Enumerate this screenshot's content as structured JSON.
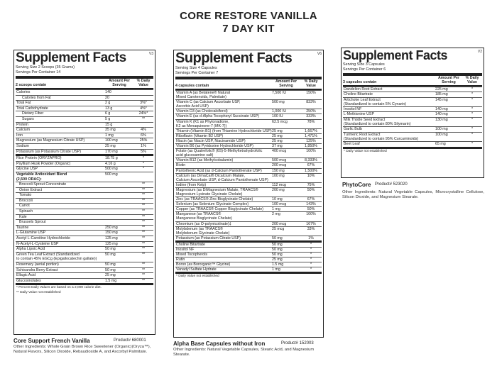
{
  "title_line1": "CORE RESTORE VANILLA",
  "title_line2": "7 DAY KIT",
  "panel1": {
    "heading": "Supplement Facts",
    "version": "V3",
    "serving_size": "Serving Size 2 Scoops (35 Grams)",
    "servings": "Servings Per Container 14",
    "col_label": "2 scoops contain",
    "col_amount": "Amount Per Serving",
    "col_dv": "% Daily Value",
    "rows": [
      {
        "n": "Calories",
        "a": "140",
        "d": "",
        "cls": ""
      },
      {
        "n": "Calories from Fat",
        "a": "20",
        "d": "",
        "cls": "ind"
      },
      {
        "n": "Total Fat",
        "a": "2 g",
        "d": "3%*",
        "cls": ""
      },
      {
        "n": "Total Carbohydrate",
        "a": "13 g",
        "d": "4%*",
        "cls": ""
      },
      {
        "n": "Dietary Fiber",
        "a": "6 g",
        "d": "24%*",
        "cls": "ind"
      },
      {
        "n": "Sugars",
        "a": "5 g",
        "d": "**",
        "cls": "ind"
      },
      {
        "n": "Protein",
        "a": "15 g",
        "d": "",
        "cls": ""
      },
      {
        "n": "Calcium",
        "a": "35 mg",
        "d": "4%",
        "cls": ""
      },
      {
        "n": "Iron",
        "a": "1 mg",
        "d": "6%",
        "cls": ""
      },
      {
        "n": "Magnesium (as Magnesium Citrate USP)",
        "a": "100 mg",
        "d": "25%",
        "cls": ""
      },
      {
        "n": "Sodium",
        "a": "25 mg",
        "d": "1%",
        "cls": ""
      },
      {
        "n": "Potassium (as Potassium Citrate USP)",
        "a": "170 mg",
        "d": "5%",
        "cls": ""
      },
      {
        "n": "Rice Protein (ORYZAPRO)",
        "a": "18.75 g",
        "d": "*",
        "cls": "thk"
      },
      {
        "n": "Psyllium Husk Powder (Organic)",
        "a": "4.16 g",
        "d": "*",
        "cls": ""
      },
      {
        "n": "Glycine USP",
        "a": "500 mg",
        "d": "*",
        "cls": ""
      },
      {
        "n": "Vegetable Antioxidant Blend\n(2,500 ORAC):",
        "a": "500 mg",
        "d": "",
        "cls": "bold"
      },
      {
        "n": "Broccoli Sprout Concentrate",
        "a": "",
        "d": "**",
        "cls": "ind2"
      },
      {
        "n": "Onion Extract",
        "a": "",
        "d": "**",
        "cls": "ind2"
      },
      {
        "n": "Tomato",
        "a": "",
        "d": "**",
        "cls": "ind2"
      },
      {
        "n": "Broccoli",
        "a": "",
        "d": "**",
        "cls": "ind2"
      },
      {
        "n": "Carrot",
        "a": "",
        "d": "**",
        "cls": "ind2"
      },
      {
        "n": "Spinach",
        "a": "",
        "d": "**",
        "cls": "ind2"
      },
      {
        "n": "Kale",
        "a": "",
        "d": "**",
        "cls": "ind2"
      },
      {
        "n": "Brussels Sprout",
        "a": "",
        "d": "**",
        "cls": "ind2"
      },
      {
        "n": "Taurine",
        "a": "250 mg",
        "d": "**",
        "cls": ""
      },
      {
        "n": "L-Glutamine USP",
        "a": "150 mg",
        "d": "**",
        "cls": ""
      },
      {
        "n": "Acetyl L-Carnitine Hydrochloride",
        "a": "125 mg",
        "d": "**",
        "cls": ""
      },
      {
        "n": "N-Acetyl-L-Cysteine USP",
        "a": "125 mg",
        "d": "**",
        "cls": ""
      },
      {
        "n": "Alpha Lipoic Acid",
        "a": "50 mg",
        "d": "**",
        "cls": ""
      },
      {
        "n": "Green Tea Leaf Extract (Standardized\nto contain 45% EGCg (Epigallocatechin gallate))",
        "a": "50 mg",
        "d": "**",
        "cls": ""
      },
      {
        "n": "Rosemary (aerial portion)",
        "a": "50 mg",
        "d": "**",
        "cls": ""
      },
      {
        "n": "Schisandra Berry Extract",
        "a": "50 mg",
        "d": "**",
        "cls": ""
      },
      {
        "n": "Ellagic Acid",
        "a": "25 mg",
        "d": "**",
        "cls": ""
      },
      {
        "n": "Glucosinolates",
        "a": "1.5 mg",
        "d": "**",
        "cls": ""
      }
    ],
    "foot1": "* Percent Daily Values are based on a 2,000 calorie diet.",
    "foot2": "** Daily Value not established",
    "product": "Core Support French Vanilla",
    "product_num": "Product# 680001",
    "other": "Other Ingredients: Whole Grain Brown Rice Sweetener (Organic)(Oryza™), Natural Flavors, Silicon Dioxide, Rebaudioside A, and Ascorbyl Palmitate."
  },
  "panel2": {
    "heading": "Supplement Facts",
    "version": "V6",
    "serving_size": "Serving Size 4 Capsules",
    "servings": "Servings Per Container 7",
    "col_label": "4 capsules contain",
    "col_amount": "Amount Per Serving",
    "col_dv": "% Daily Value",
    "rows": [
      {
        "n": "Vitamin A (as Betatene® Natural\nMixed Carotenoids, Palmitate)",
        "a": "7,500 IU",
        "d": "150%",
        "cls": ""
      },
      {
        "n": "Vitamin C (as Calcium Ascorbate USP,\nAscorbic Acid USP)",
        "a": "500 mg",
        "d": "833%",
        "cls": ""
      },
      {
        "n": "Vitamin D3 (as Cholecalciferol)",
        "a": "1,000 IU",
        "d": "250%",
        "cls": ""
      },
      {
        "n": "Vitamin E (as d-Alpha Tocopheryl Succinate USP)",
        "a": "100 IU",
        "d": "333%",
        "cls": ""
      },
      {
        "n": "Vitamin K (K1 as Phytonadione,\nK2 as Menaquinone-7 (MK-7))",
        "a": "62.5 mcg",
        "d": "78%",
        "cls": ""
      },
      {
        "n": "Thiamin (Vitamin B1) (from Thiamine Hydrochloride USP)",
        "a": "25 mg",
        "d": "1,667%",
        "cls": ""
      },
      {
        "n": "Riboflavin (Vitamin B2 USP)",
        "a": "25 mg",
        "d": "1,471%",
        "cls": ""
      },
      {
        "n": "Niacin (as Niacin USP, Niacinamide USP)",
        "a": "25 mg",
        "d": "125%",
        "cls": ""
      },
      {
        "n": "Vitamin B6 (as Pyridoxine Hydrochloride USP)",
        "a": "37 mg",
        "d": "1,850%",
        "cls": ""
      },
      {
        "n": "Folate (as Quatrefolic® (6S)-5-Methyltetrahydrofolic\nacid glucosamine salt)",
        "a": "400 mcg",
        "d": "100%",
        "cls": ""
      },
      {
        "n": "Vitamin B12 (as Methylcobalamin)",
        "a": "500 mcg",
        "d": "8,333%",
        "cls": ""
      },
      {
        "n": "Biotin",
        "a": "200 mcg",
        "d": "67%",
        "cls": ""
      },
      {
        "n": "Pantothenic Acid (as d-Calcium Pantothenate USP)",
        "a": "150 mg",
        "d": "1,500%",
        "cls": ""
      },
      {
        "n": "Calcium (as DimaCal® Dicalcium Malate,\nCalcium Ascorbate USP, d-Calcium Pantothenate USP)",
        "a": "100 mg",
        "d": "10%",
        "cls": ""
      },
      {
        "n": "Iodine (from Kelp)",
        "a": "112 mcg",
        "d": "75%",
        "cls": ""
      },
      {
        "n": "Magnesium (as DiMagnesium Malate, TRAACS®\nMagnesium Lysinate Glycinate Chelate)",
        "a": "200 mg",
        "d": "50%",
        "cls": ""
      },
      {
        "n": "Zinc (as TRAACS® Zinc Bisglycinate Chelate)",
        "a": "10 mg",
        "d": "67%",
        "cls": ""
      },
      {
        "n": "Selenium (as Selenium Glycinate Complex)",
        "a": "100 mcg",
        "d": "143%",
        "cls": ""
      },
      {
        "n": "Copper (as TRAACS® Copper Bisglycinate Chelate)",
        "a": "1 mg",
        "d": "50%",
        "cls": ""
      },
      {
        "n": "Manganese (as TRAACS®\nManganese Bisglycinate Chelate)",
        "a": "2 mg",
        "d": "100%",
        "cls": ""
      },
      {
        "n": "Chromium (as O-polynicotinate)‡",
        "a": "200 mcg",
        "d": "167%",
        "cls": ""
      },
      {
        "n": "Molybdenum (as TRAACS®\nMolybdenum Glycinate Chelate)",
        "a": "25 mcg",
        "d": "33%",
        "cls": ""
      },
      {
        "n": "Potassium (as Potassium Citrate USP)",
        "a": "50 mg",
        "d": "1%",
        "cls": ""
      },
      {
        "n": "Choline Bitartrate",
        "a": "50 mg",
        "d": "*",
        "cls": "thk"
      },
      {
        "n": "Inositol NF",
        "a": "50 mg",
        "d": "*",
        "cls": ""
      },
      {
        "n": "Mixed Tocopherols",
        "a": "50 mg",
        "d": "*",
        "cls": ""
      },
      {
        "n": "Rutin",
        "a": "25 mg",
        "d": "*",
        "cls": ""
      },
      {
        "n": "Boron (as Bororganic™ Glycine)",
        "a": "1.5 mg",
        "d": "*",
        "cls": ""
      },
      {
        "n": "Vanadyl Sulfate Hydrate",
        "a": "1 mg",
        "d": "*",
        "cls": ""
      }
    ],
    "foot1": "* Daily Value not established",
    "product": "Alpha Base Capsules without Iron",
    "product_num": "Product# 152003",
    "other": "Other Ingredients: Natural Vegetable Capsules, Stearic Acid, and Magnesium Stearate."
  },
  "panel3": {
    "heading": "Supplement Facts",
    "version": "V2",
    "serving_size": "Serving Size 3 Capsules",
    "servings": "Servings Per Container 6",
    "col_label": "3 capsules contain",
    "col_amount": "Amount Per Serving",
    "col_dv": "% Daily Value",
    "rows": [
      {
        "n": "Dandelion Root Extract",
        "a": "225 mg",
        "d": "*",
        "cls": ""
      },
      {
        "n": "Choline Bitartrate",
        "a": "185 mg",
        "d": "*",
        "cls": ""
      },
      {
        "n": "Artichoke Leaf Extract\n(Standardized to contain 5% Cynarin)",
        "a": "145 mg",
        "d": "*",
        "cls": ""
      },
      {
        "n": "Inositol NF",
        "a": "140 mg",
        "d": "*",
        "cls": ""
      },
      {
        "n": "L-Methionine USP",
        "a": "140 mg",
        "d": "*",
        "cls": ""
      },
      {
        "n": "Milk Thistle Seed Extract\n(Standardized to contain 80% Silymarin)",
        "a": "130 mg",
        "d": "*",
        "cls": ""
      },
      {
        "n": "Garlic Bulb",
        "a": "100 mg",
        "d": "*",
        "cls": ""
      },
      {
        "n": "Turmeric Root Extract\n(Standardized to contain 95% Curcuminoids)",
        "a": "100 mg",
        "d": "*",
        "cls": ""
      },
      {
        "n": "Beet Leaf",
        "a": "65 mg",
        "d": "*",
        "cls": ""
      }
    ],
    "foot1": "* Daily Value not established",
    "product": "PhytoCore",
    "product_num": "Product# 523020",
    "other": "Other Ingredients: Natural Vegetable Capsules, Microcrystalline Cellulose, Silicon Dioxide, and Magnesium Stearate."
  }
}
